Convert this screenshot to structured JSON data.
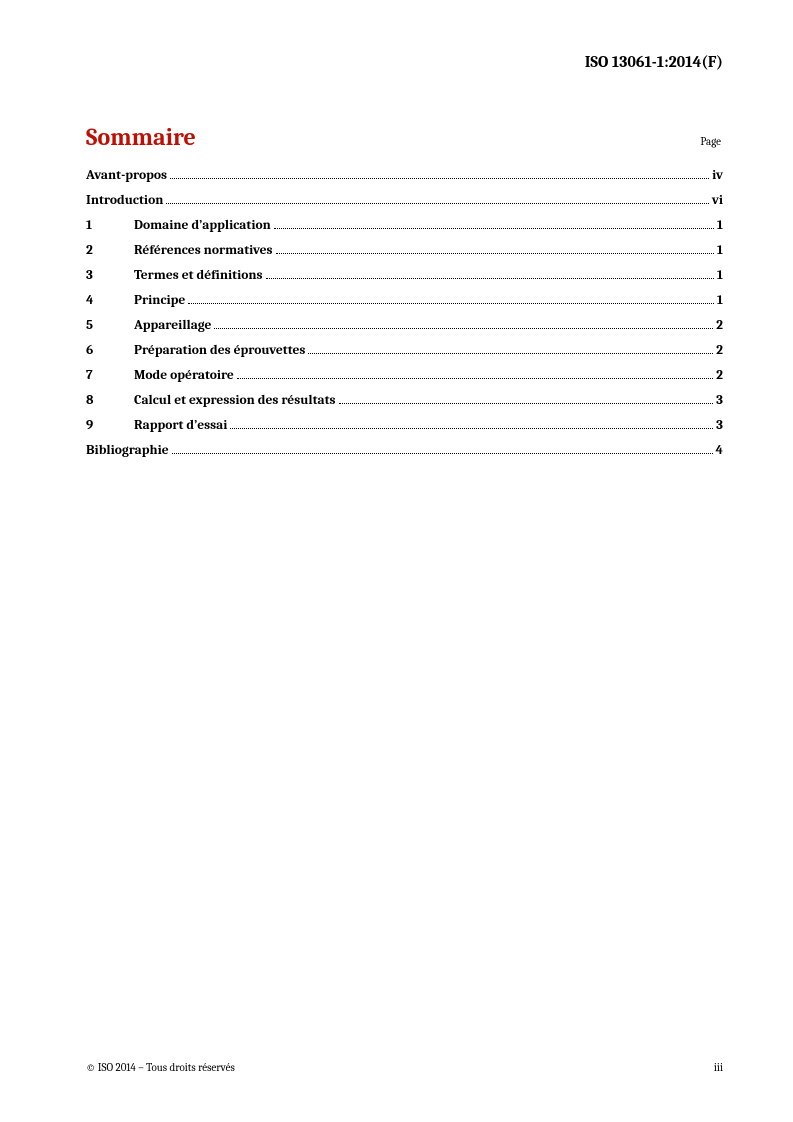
{
  "header": {
    "doc_id": "ISO 13061-1:2014(F)"
  },
  "title": "Sommaire",
  "page_label": "Page",
  "colors": {
    "accent": "#be0f05",
    "text": "#000000",
    "background": "#ffffff"
  },
  "typography": {
    "body_font": "Cambria, serif",
    "title_fontsize_pt": 18,
    "entry_fontsize_pt": 10,
    "header_fontsize_pt": 12,
    "footer_fontsize_pt": 8
  },
  "toc": [
    {
      "num": "",
      "title": "Avant-propos",
      "page": "iv"
    },
    {
      "num": "",
      "title": "Introduction",
      "page": "vi"
    },
    {
      "num": "1",
      "title": "Domaine d’application",
      "page": "1"
    },
    {
      "num": "2",
      "title": "Références normatives",
      "page": "1"
    },
    {
      "num": "3",
      "title": "Termes et définitions",
      "page": "1"
    },
    {
      "num": "4",
      "title": "Principe",
      "page": "1"
    },
    {
      "num": "5",
      "title": "Appareillage",
      "page": "2"
    },
    {
      "num": "6",
      "title": "Préparation des éprouvettes",
      "page": "2"
    },
    {
      "num": "7",
      "title": "Mode opératoire",
      "page": "2"
    },
    {
      "num": "8",
      "title": "Calcul et expression des résultats",
      "page": "3"
    },
    {
      "num": "9",
      "title": "Rapport d’essai",
      "page": "3"
    },
    {
      "num": "",
      "title": "Bibliographie",
      "page": "4"
    }
  ],
  "footer": {
    "copyright": "© ISO 2014 – Tous droits réservés",
    "folio": "iii"
  }
}
